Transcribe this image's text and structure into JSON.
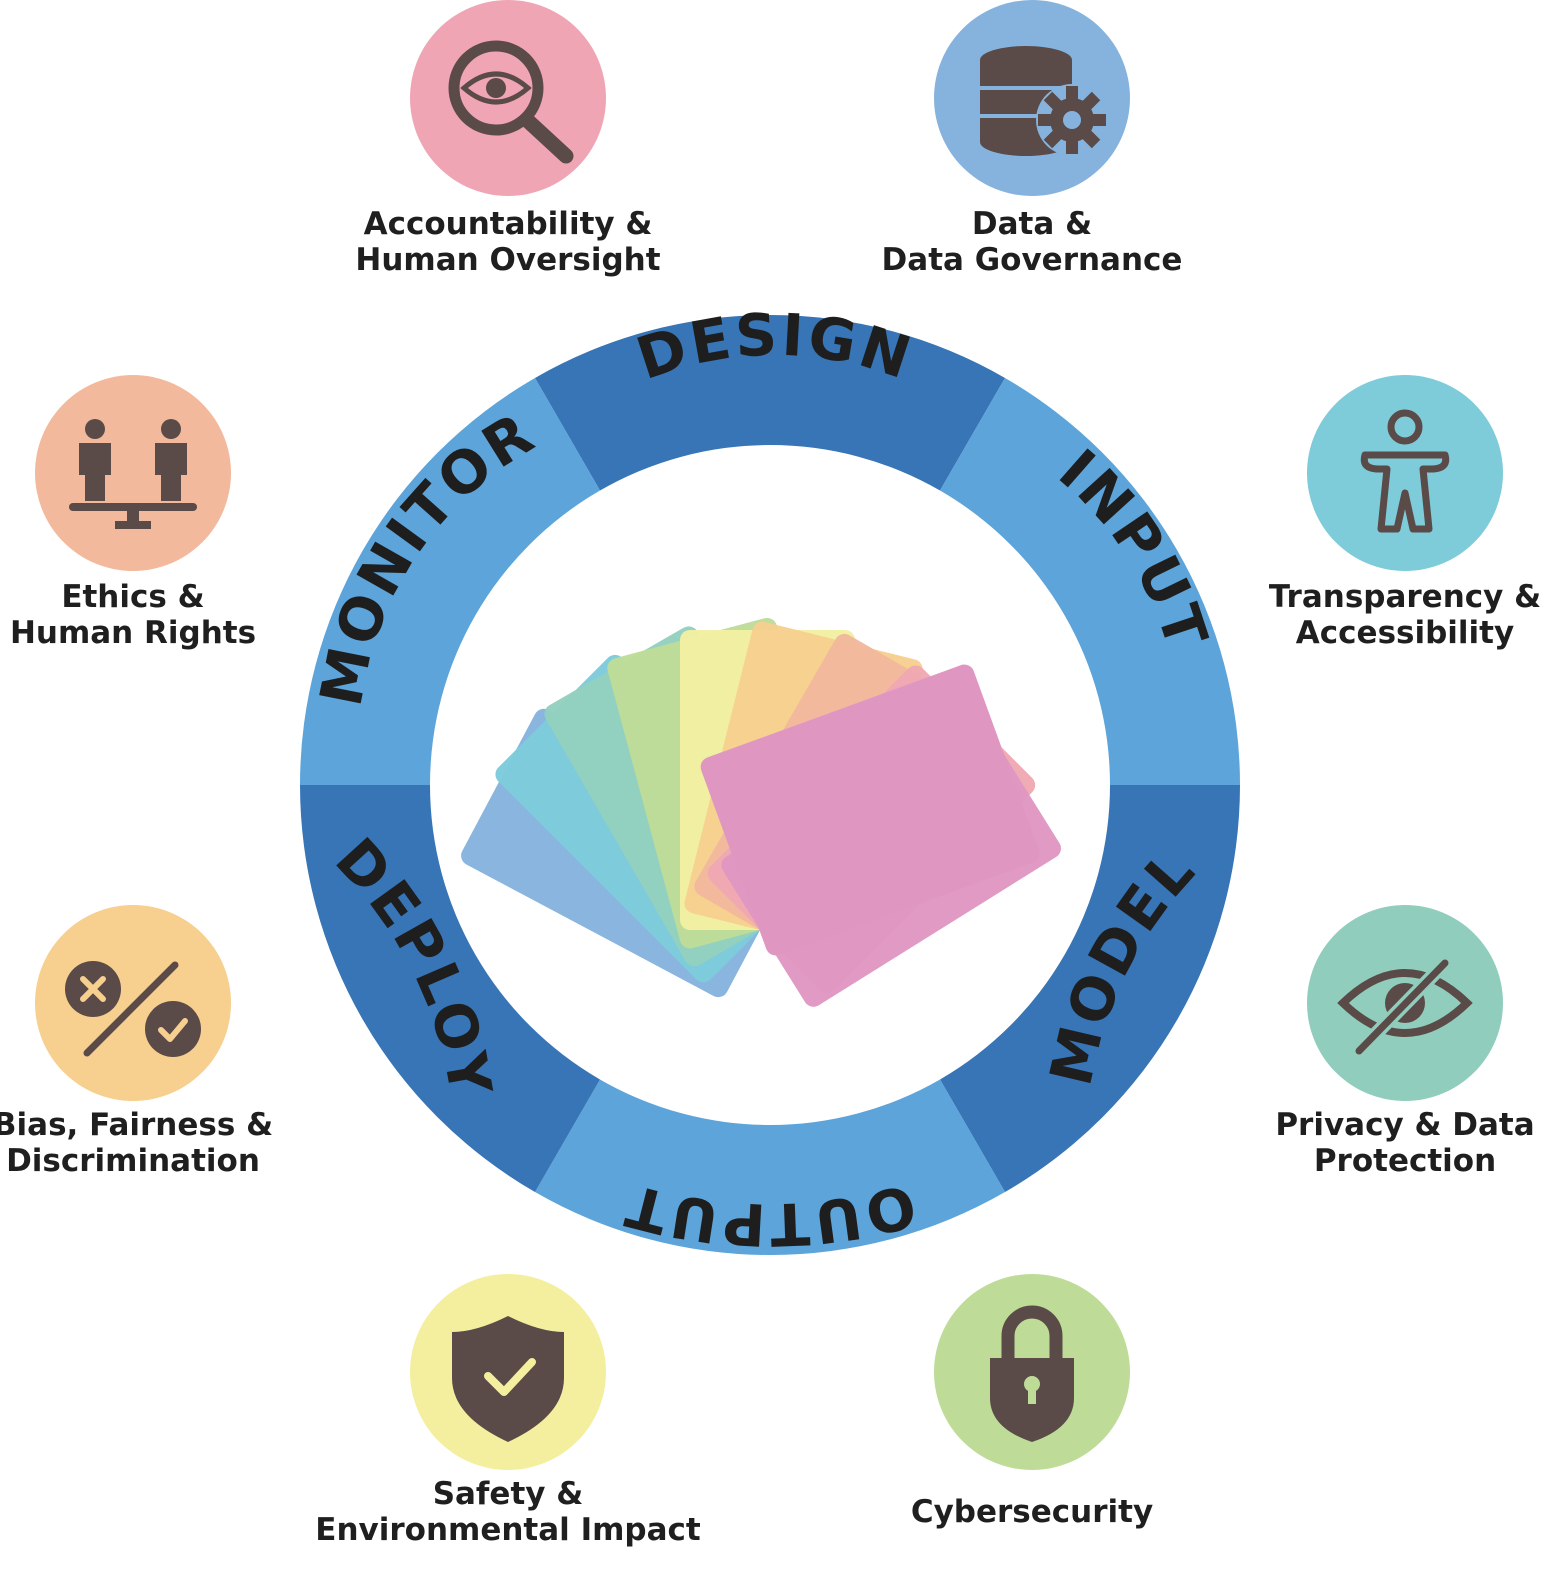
{
  "colors": {
    "ring_dark": "#3775b6",
    "ring_light": "#5ca4da",
    "icon_dark": "#5a4a48",
    "text": "#1f1f1f"
  },
  "phases": [
    {
      "id": "design",
      "label": "DESIGN"
    },
    {
      "id": "input",
      "label": "INPUT"
    },
    {
      "id": "model",
      "label": "MODEL"
    },
    {
      "id": "output",
      "label": "OUTPUT"
    },
    {
      "id": "deploy",
      "label": "DEPLOY"
    },
    {
      "id": "monitor",
      "label": "MONITOR"
    }
  ],
  "topics": [
    {
      "id": "accountability",
      "icon": "magnifier-eye-icon",
      "color": "#f0a5b4",
      "lines": [
        "Accountability &",
        "Human Oversight"
      ]
    },
    {
      "id": "data-governance",
      "icon": "database-gear-icon",
      "color": "#86b3dd",
      "lines": [
        "Data &",
        "Data Governance"
      ]
    },
    {
      "id": "transparency",
      "icon": "accessibility-person-icon",
      "color": "#7ecbd9",
      "lines": [
        "Transparency &",
        "Accessibility"
      ]
    },
    {
      "id": "privacy",
      "icon": "eye-slash-icon",
      "color": "#90cdbd",
      "lines": [
        "Privacy & Data",
        "Protection"
      ]
    },
    {
      "id": "cybersecurity",
      "icon": "padlock-icon",
      "color": "#bedc98",
      "lines": [
        "Cybersecurity"
      ]
    },
    {
      "id": "safety",
      "icon": "shield-check-icon",
      "color": "#f4ef9f",
      "lines": [
        "Safety &",
        "Environmental Impact"
      ]
    },
    {
      "id": "bias",
      "icon": "percent-check-cross-icon",
      "color": "#f7cf8e",
      "lines": [
        "Bias, Fairness &",
        "Discrimination"
      ]
    },
    {
      "id": "ethics",
      "icon": "people-balance-icon",
      "color": "#f3b99c",
      "lines": [
        "Ethics &",
        "Human Rights"
      ]
    }
  ],
  "cards": {
    "colors": [
      "#85b3dd",
      "#7ecbdc",
      "#93d0bf",
      "#bedc98",
      "#f2f0a2",
      "#f6cf8f",
      "#f2b89d",
      "#f0a8b3",
      "#df97c2"
    ]
  }
}
